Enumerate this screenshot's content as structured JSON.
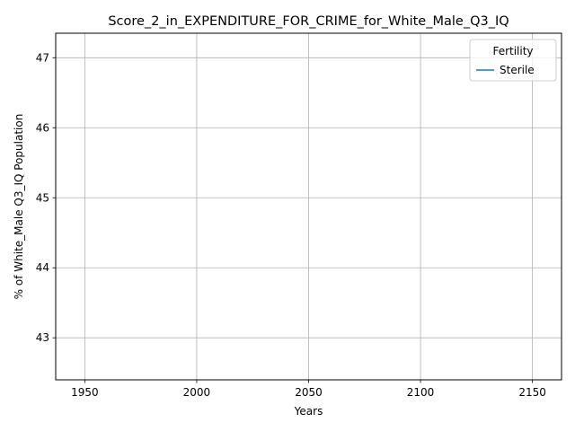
{
  "chart_data": {
    "type": "line",
    "title": "Score_2_in_EXPENDITURE_FOR_CRIME_for_White_Male_Q3_IQ",
    "xlabel": "Years",
    "ylabel": "% of White_Male Q3_IQ Population",
    "xlim": [
      1937,
      2163
    ],
    "ylim": [
      42.4,
      47.35
    ],
    "xticks": [
      1950,
      2000,
      2050,
      2100,
      2150
    ],
    "yticks": [
      43,
      44,
      45,
      46,
      47
    ],
    "grid": true,
    "legend": {
      "title": "Fertility",
      "placement": "top-right",
      "entries": [
        {
          "name": "Sterile",
          "color": "#1f77b4"
        }
      ]
    },
    "series": [
      {
        "name": "Sterile",
        "color": "#1f77b4",
        "x": [],
        "y": []
      }
    ]
  }
}
